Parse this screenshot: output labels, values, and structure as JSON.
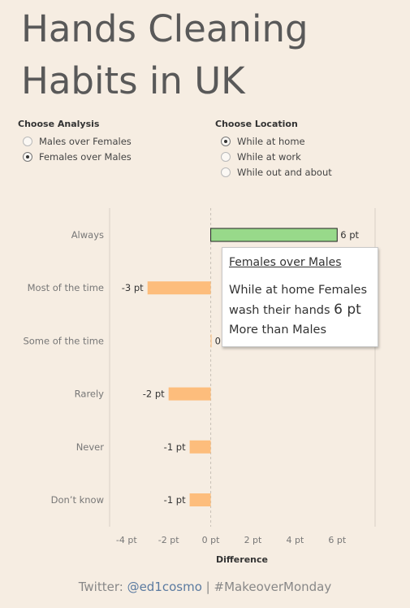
{
  "title": "Hands Cleaning Habits in UK",
  "analysis": {
    "heading": "Choose Analysis",
    "options": [
      {
        "label": "Males over Females",
        "checked": false
      },
      {
        "label": "Females over Males",
        "checked": true
      }
    ]
  },
  "location": {
    "heading": "Choose Location",
    "options": [
      {
        "label": "While at home",
        "checked": true
      },
      {
        "label": "While at work",
        "checked": false
      },
      {
        "label": "While out and about",
        "checked": false
      }
    ]
  },
  "chart_data": {
    "type": "bar",
    "orientation": "horizontal",
    "categories": [
      "Always",
      "Most of the time",
      "Some of the time",
      "Rarely",
      "Never",
      "Don’t know"
    ],
    "values": [
      6,
      -3,
      0,
      -2,
      -1,
      -1
    ],
    "value_labels": [
      "6 pt",
      "-3 pt",
      "0",
      "-2 pt",
      "-1 pt",
      "-1 pt"
    ],
    "xlabel": "Difference",
    "xlim": [
      -4.8,
      7.8
    ],
    "xticks": [
      -4,
      -2,
      0,
      2,
      4,
      6
    ],
    "xtick_labels": [
      "-4 pt",
      "-2 pt",
      "0 pt",
      "2 pt",
      "4 pt",
      "6 pt"
    ],
    "highlight_index": 0,
    "colors": {
      "highlight": "#98d98a",
      "default": "#fdbd7c",
      "highlight_border": "#222222"
    }
  },
  "tooltip": {
    "title": "Females over Males",
    "line1_a": "While at home ",
    "line1_b": "Females",
    "line2_a": "wash their hands ",
    "line2_b": "6 pt",
    "line3_a": "More than ",
    "line3_b": "Males"
  },
  "footer": {
    "prefix": "Twitter: ",
    "handle": "@ed1cosmo",
    "suffix": " | #MakeoverMonday"
  }
}
